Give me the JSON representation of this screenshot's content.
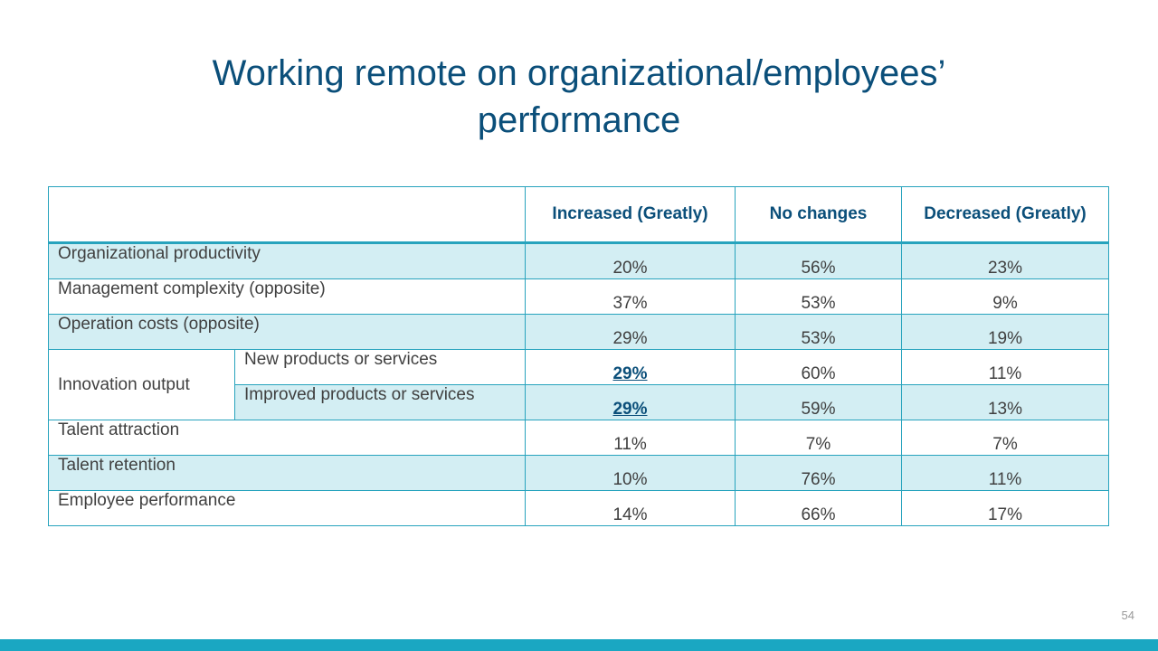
{
  "slide": {
    "title_line1": "Working remote on organizational/employees’",
    "title_line2": "performance",
    "page_number": "54"
  },
  "table": {
    "headers": [
      "",
      "Increased (Greatly)",
      "No changes",
      "Decreased (Greatly)"
    ],
    "rows": [
      {
        "label": "Organizational productivity",
        "values": [
          "20%",
          "56%",
          "23%"
        ]
      },
      {
        "label": "Management complexity (opposite)",
        "values": [
          "37%",
          "53%",
          "9%"
        ]
      },
      {
        "label": "Operation costs (opposite)",
        "values": [
          "29%",
          "53%",
          "19%"
        ]
      },
      {
        "group": "Innovation output",
        "sublabel": "New products or services",
        "values": [
          "29%",
          "60%",
          "11%"
        ]
      },
      {
        "sublabel": "Improved products or services",
        "values": [
          "29%",
          "59%",
          "13%"
        ]
      },
      {
        "label": "Talent attraction",
        "values": [
          "11%",
          "7%",
          "7%"
        ]
      },
      {
        "label": "Talent retention",
        "values": [
          "10%",
          "76%",
          "11%"
        ]
      },
      {
        "label": "Employee performance",
        "values": [
          "14%",
          "66%",
          "17%"
        ]
      }
    ]
  },
  "colors": {
    "title": "#0b4f7a",
    "border": "#27a3bd",
    "row_shade": "#d3eef3",
    "bottom_bar": "#1aa7c2"
  }
}
